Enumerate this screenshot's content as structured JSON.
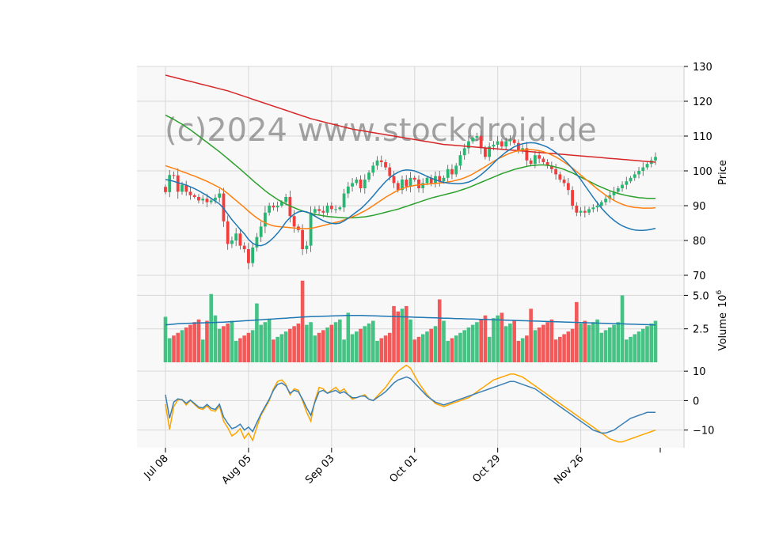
{
  "watermark": "(c)2024 www.stockdroid.de",
  "colors": {
    "up": "#26b870",
    "down": "#f23d3d",
    "panel_bg": "#f8f8f8",
    "grid": "#d8d8d8",
    "ma_short": "#1f77b4",
    "ma_mid": "#ff7f0e",
    "ma_long": "#2ca02c",
    "ma_longest": "#d62728",
    "vol_ma": "#1f77b4",
    "osc_fast": "#ffa500",
    "osc_slow": "#3a7fb5"
  },
  "chart_data": [
    {
      "type": "candlestick",
      "panel": "price",
      "ylabel": "Price",
      "ylim": [
        70,
        130
      ],
      "yticks": [
        70,
        80,
        90,
        100,
        110,
        120,
        130
      ],
      "grid": true,
      "x_ticks": [
        {
          "i": 0,
          "label": "Jul 08"
        },
        {
          "i": 20,
          "label": "Aug 05"
        },
        {
          "i": 40,
          "label": "Sep 03"
        },
        {
          "i": 60,
          "label": "Oct 01"
        },
        {
          "i": 80,
          "label": "Oct 29"
        },
        {
          "i": 100,
          "label": "Nov 26"
        }
      ],
      "num_bars": 119,
      "closes": [
        93.9,
        98.8,
        98.7,
        94.0,
        96.0,
        94.0,
        93.0,
        92.5,
        91.5,
        92.0,
        91.0,
        91.5,
        92.3,
        93.5,
        85.5,
        79.0,
        80.0,
        82.0,
        78.5,
        77.5,
        73.5,
        78.0,
        81.0,
        84.0,
        88.0,
        90.0,
        89.5,
        90.0,
        91.0,
        92.5,
        87.0,
        84.0,
        83.0,
        77.5,
        78.5,
        88.0,
        89.0,
        88.5,
        88.0,
        90.0,
        89.0,
        89.0,
        89.5,
        93.5,
        95.5,
        96.5,
        97.5,
        95.0,
        97.5,
        99.5,
        101.5,
        103.0,
        102.5,
        101.0,
        98.5,
        96.5,
        94.5,
        97.5,
        95.5,
        98.0,
        97.5,
        95.0,
        96.5,
        98.0,
        96.5,
        98.5,
        97.0,
        98.0,
        100.5,
        99.0,
        101.5,
        104.5,
        106.5,
        108.5,
        109.5,
        110.0,
        106.5,
        104.0,
        107.0,
        107.5,
        108.5,
        107.0,
        108.5,
        109.0,
        108.0,
        106.0,
        106.5,
        103.0,
        102.0,
        104.5,
        103.5,
        102.5,
        101.5,
        100.5,
        99.0,
        97.5,
        96.5,
        94.5,
        90.0,
        88.0,
        88.5,
        88.0,
        89.0,
        89.5,
        90.0,
        91.0,
        92.0,
        93.0,
        94.0,
        95.0,
        96.0,
        97.0,
        98.0,
        99.0,
        100.0,
        101.0,
        102.0,
        103.0,
        104.0
      ],
      "ma_short": [
        97.5,
        97.3,
        97.0,
        96.6,
        96.3,
        95.9,
        95.4,
        94.9,
        94.3,
        93.6,
        92.9,
        92.1,
        91.3,
        90.5,
        89.2,
        87.6,
        86.0,
        84.6,
        83.2,
        81.9,
        80.3,
        79.2,
        78.6,
        78.5,
        78.9,
        79.7,
        80.8,
        82.1,
        83.6,
        85.3,
        86.6,
        87.6,
        88.2,
        88.4,
        88.2,
        87.7,
        87.0,
        86.3,
        85.7,
        85.2,
        84.9,
        84.8,
        85.0,
        85.6,
        86.4,
        87.3,
        88.2,
        89.1,
        90.2,
        91.4,
        92.8,
        94.2,
        95.6,
        96.9,
        98.0,
        98.9,
        99.6,
        100.1,
        100.3,
        100.2,
        100.0,
        99.5,
        99.0,
        98.4,
        97.9,
        97.4,
        97.0,
        96.7,
        96.5,
        96.4,
        96.3,
        96.3,
        96.5,
        96.8,
        97.3,
        98.0,
        98.9,
        99.9,
        101.0,
        102.2,
        103.4,
        104.4,
        105.4,
        106.2,
        106.9,
        107.4,
        107.8,
        108.0,
        108.1,
        108.0,
        107.7,
        107.3,
        106.8,
        106.1,
        105.3,
        104.3,
        103.2,
        102.0,
        100.6,
        99.1,
        97.5,
        95.8,
        94.1,
        92.4,
        90.8,
        89.3,
        88.0,
        86.8,
        85.8,
        84.9,
        84.2,
        83.7,
        83.3,
        83.0,
        82.9,
        82.9,
        83.0,
        83.2,
        83.5
      ],
      "ma_mid": [
        101.5,
        101.1,
        100.7,
        100.3,
        99.8,
        99.4,
        98.9,
        98.5,
        98.0,
        97.5,
        97.0,
        96.4,
        95.8,
        95.2,
        94.4,
        93.5,
        92.5,
        91.5,
        90.5,
        89.5,
        88.4,
        87.4,
        86.5,
        85.7,
        85.1,
        84.6,
        84.2,
        84.0,
        83.9,
        83.8,
        83.7,
        83.6,
        83.5,
        83.4,
        83.4,
        83.5,
        83.7,
        84.0,
        84.3,
        84.6,
        84.9,
        85.2,
        85.5,
        85.9,
        86.3,
        86.8,
        87.3,
        87.9,
        88.5,
        89.2,
        90.0,
        90.8,
        91.6,
        92.4,
        93.1,
        93.8,
        94.4,
        94.9,
        95.3,
        95.6,
        95.8,
        96.0,
        96.1,
        96.2,
        96.3,
        96.4,
        96.5,
        96.6,
        96.8,
        97.0,
        97.3,
        97.6,
        98.0,
        98.5,
        99.1,
        99.8,
        100.5,
        101.2,
        102.0,
        102.7,
        103.4,
        104.0,
        104.6,
        105.1,
        105.5,
        105.8,
        106.0,
        106.1,
        106.1,
        106.0,
        105.8,
        105.5,
        105.1,
        104.6,
        104.0,
        103.3,
        102.5,
        101.7,
        100.8,
        99.8,
        98.8,
        97.8,
        96.8,
        95.8,
        94.8,
        93.9,
        93.0,
        92.2,
        91.5,
        90.9,
        90.4,
        90.0,
        89.7,
        89.5,
        89.4,
        89.3,
        89.3,
        89.3,
        89.4
      ],
      "ma_long": [
        116.0,
        115.4,
        114.8,
        114.1,
        113.4,
        112.6,
        111.8,
        110.9,
        110.0,
        109.1,
        108.2,
        107.3,
        106.4,
        105.5,
        104.5,
        103.5,
        102.5,
        101.5,
        100.5,
        99.4,
        98.4,
        97.3,
        96.3,
        95.3,
        94.3,
        93.4,
        92.6,
        91.8,
        91.1,
        90.5,
        89.9,
        89.4,
        88.9,
        88.5,
        88.1,
        87.8,
        87.5,
        87.3,
        87.1,
        86.9,
        86.8,
        86.7,
        86.6,
        86.5,
        86.5,
        86.5,
        86.6,
        86.7,
        86.8,
        87.0,
        87.2,
        87.5,
        87.8,
        88.1,
        88.4,
        88.7,
        89.0,
        89.4,
        89.8,
        90.2,
        90.6,
        91.0,
        91.4,
        91.8,
        92.2,
        92.5,
        92.8,
        93.1,
        93.4,
        93.7,
        94.0,
        94.4,
        94.8,
        95.2,
        95.7,
        96.2,
        96.7,
        97.2,
        97.7,
        98.2,
        98.7,
        99.2,
        99.6,
        100.0,
        100.4,
        100.7,
        101.0,
        101.3,
        101.5,
        101.6,
        101.7,
        101.7,
        101.6,
        101.4,
        101.1,
        100.8,
        100.4,
        99.9,
        99.4,
        98.8,
        98.2,
        97.6,
        97.0,
        96.4,
        95.8,
        95.3,
        94.8,
        94.3,
        93.9,
        93.5,
        93.2,
        92.9,
        92.7,
        92.5,
        92.3,
        92.2,
        92.1,
        92.1,
        92.1
      ],
      "ma_longest": [
        127.5,
        127.2,
        126.9,
        126.6,
        126.3,
        126.0,
        125.7,
        125.4,
        125.1,
        124.8,
        124.5,
        124.2,
        123.9,
        123.6,
        123.3,
        123.0,
        122.6,
        122.2,
        121.8,
        121.4,
        121.0,
        120.6,
        120.2,
        119.8,
        119.4,
        119.0,
        118.6,
        118.2,
        117.8,
        117.4,
        117.0,
        116.6,
        116.2,
        115.8,
        115.4,
        115.0,
        114.7,
        114.4,
        114.1,
        113.8,
        113.5,
        113.2,
        112.9,
        112.6,
        112.3,
        112.0,
        111.8,
        111.6,
        111.4,
        111.2,
        111.0,
        110.8,
        110.6,
        110.4,
        110.2,
        110.0,
        109.8,
        109.6,
        109.4,
        109.2,
        109.0,
        108.8,
        108.6,
        108.4,
        108.2,
        108.0,
        107.8,
        107.6,
        107.5,
        107.4,
        107.3,
        107.2,
        107.1,
        107.0,
        106.9,
        106.8,
        106.7,
        106.6,
        106.5,
        106.4,
        106.3,
        106.2,
        106.1,
        106.0,
        105.9,
        105.8,
        105.7,
        105.6,
        105.5,
        105.4,
        105.3,
        105.2,
        105.1,
        105.0,
        104.9,
        104.8,
        104.7,
        104.6,
        104.5,
        104.4,
        104.3,
        104.2,
        104.1,
        104.0,
        103.9,
        103.8,
        103.7,
        103.6,
        103.5,
        103.4,
        103.3,
        103.2,
        103.1,
        103.0,
        102.9,
        102.8,
        102.7,
        102.6,
        102.5
      ]
    },
    {
      "type": "bar",
      "panel": "volume",
      "ylabel": "Volume",
      "unit": "10^6",
      "ylim": [
        0,
        6.5
      ],
      "yticks": [
        2.5,
        5.0
      ],
      "volume_ma": [
        2.8,
        2.82,
        2.85,
        2.88,
        2.9,
        2.91,
        2.92,
        2.93,
        2.94,
        2.95,
        2.96,
        2.97,
        2.98,
        2.99,
        3.0,
        3.02,
        3.04,
        3.06,
        3.08,
        3.1,
        3.12,
        3.14,
        3.16,
        3.18,
        3.2,
        3.22,
        3.24,
        3.26,
        3.28,
        3.3,
        3.32,
        3.34,
        3.36,
        3.38,
        3.4,
        3.41,
        3.42,
        3.43,
        3.44,
        3.45,
        3.46,
        3.47,
        3.48,
        3.49,
        3.5,
        3.5,
        3.5,
        3.5,
        3.49,
        3.48,
        3.47,
        3.46,
        3.45,
        3.44,
        3.43,
        3.42,
        3.41,
        3.4,
        3.39,
        3.38,
        3.37,
        3.36,
        3.35,
        3.34,
        3.33,
        3.32,
        3.31,
        3.3,
        3.29,
        3.28,
        3.27,
        3.26,
        3.25,
        3.24,
        3.23,
        3.22,
        3.21,
        3.2,
        3.19,
        3.18,
        3.17,
        3.16,
        3.15,
        3.14,
        3.13,
        3.12,
        3.11,
        3.1,
        3.09,
        3.08,
        3.07,
        3.06,
        3.05,
        3.04,
        3.03,
        3.02,
        3.01,
        3.0,
        2.99,
        2.98,
        2.97,
        2.96,
        2.95,
        2.94,
        2.93,
        2.92,
        2.91,
        2.9,
        2.89,
        2.88,
        2.87,
        2.86,
        2.85,
        2.84,
        2.83,
        2.82,
        2.81,
        2.8,
        2.79
      ]
    },
    {
      "type": "line",
      "panel": "oscillator",
      "ylim": [
        -16,
        13
      ],
      "yticks": [
        -10,
        0,
        10
      ],
      "series": [
        {
          "values": [
            -1.2,
            -9.8,
            -2.0,
            0.3,
            0.4,
            -1.5,
            0.1,
            -1.3,
            -2.6,
            -3.0,
            -1.8,
            -3.3,
            -3.6,
            -1.8,
            -7.0,
            -9.2,
            -12.0,
            -11.0,
            -9.5,
            -12.8,
            -11.0,
            -13.5,
            -9.0,
            -5.0,
            -2.5,
            0.0,
            4.0,
            6.5,
            7.0,
            5.5,
            2.0,
            4.0,
            3.5,
            0.0,
            -4.0,
            -7.0,
            0.0,
            4.5,
            4.0,
            2.5,
            3.5,
            4.5,
            3.0,
            4.0,
            2.0,
            0.5,
            1.0,
            1.5,
            2.0,
            0.5,
            0.0,
            1.5,
            3.0,
            4.5,
            6.5,
            8.5,
            10.0,
            11.0,
            12.0,
            11.0,
            8.5,
            6.0,
            4.0,
            2.0,
            0.5,
            -1.0,
            -1.5,
            -2.0,
            -1.5,
            -1.0,
            -0.5,
            0.0,
            0.5,
            1.0,
            2.0,
            3.0,
            4.0,
            5.0,
            6.0,
            7.0,
            7.5,
            8.0,
            8.5,
            9.0,
            9.0,
            8.5,
            8.0,
            7.0,
            6.0,
            5.0,
            4.0,
            3.0,
            2.0,
            1.0,
            0.0,
            -1.0,
            -2.0,
            -3.0,
            -4.0,
            -5.0,
            -6.0,
            -7.0,
            -8.0,
            -9.0,
            -10.0,
            -11.0,
            -12.0,
            -13.0,
            -13.5,
            -14.0,
            -14.0,
            -13.5,
            -13.0,
            -12.5,
            -12.0,
            -11.5,
            -11.0,
            -10.5,
            -10.0
          ]
        },
        {
          "values": [
            2.0,
            -6.0,
            -0.5,
            0.6,
            0.3,
            -0.9,
            0.2,
            -1.0,
            -2.2,
            -2.5,
            -1.3,
            -2.6,
            -3.0,
            -1.2,
            -5.5,
            -7.7,
            -9.5,
            -9.0,
            -8.0,
            -10.0,
            -9.0,
            -10.5,
            -7.5,
            -4.5,
            -2.0,
            0.5,
            3.5,
            5.5,
            6.0,
            5.0,
            2.5,
            3.5,
            3.0,
            0.5,
            -2.5,
            -5.0,
            -0.5,
            3.0,
            3.5,
            2.5,
            3.0,
            3.5,
            2.5,
            3.0,
            2.0,
            1.0,
            1.0,
            1.5,
            1.5,
            0.5,
            0.0,
            1.0,
            2.0,
            3.0,
            4.5,
            6.0,
            7.0,
            7.5,
            8.0,
            7.5,
            6.0,
            4.5,
            3.0,
            1.5,
            0.5,
            -0.5,
            -1.0,
            -1.5,
            -1.0,
            -0.5,
            0.0,
            0.5,
            1.0,
            1.5,
            2.0,
            2.5,
            3.0,
            3.5,
            4.0,
            4.5,
            5.0,
            5.5,
            6.0,
            6.5,
            6.5,
            6.0,
            5.5,
            5.0,
            4.5,
            4.0,
            3.0,
            2.0,
            1.0,
            0.0,
            -1.0,
            -2.0,
            -3.0,
            -4.0,
            -5.0,
            -6.0,
            -7.0,
            -8.0,
            -9.0,
            -10.0,
            -10.5,
            -11.0,
            -11.0,
            -10.5,
            -10.0,
            -9.0,
            -8.0,
            -7.0,
            -6.0,
            -5.5,
            -5.0,
            -4.5,
            -4.0,
            -4.0,
            -4.0
          ]
        }
      ]
    }
  ]
}
